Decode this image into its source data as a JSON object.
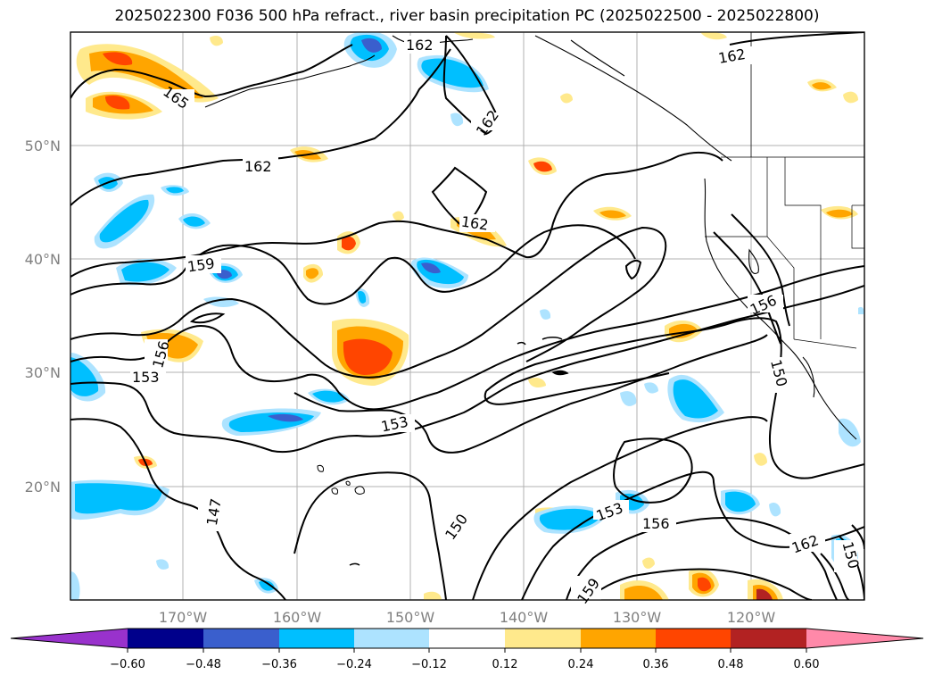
{
  "title": "2025022300 F036 500 hPa refract., river basin precipitation PC (2025022500 - 2025022800)",
  "lat_labels": [
    "50°N",
    "40°N",
    "30°N",
    "20°N"
  ],
  "lon_labels": [
    "170°W",
    "160°W",
    "150°W",
    "140°W",
    "130°W",
    "120°W"
  ],
  "contour_labels": [
    "162",
    "162",
    "162",
    "165",
    "162",
    "162",
    "159",
    "156",
    "156",
    "153",
    "153",
    "150",
    "147",
    "150",
    "153",
    "156",
    "162",
    "159",
    "150"
  ],
  "colorbar": {
    "ticks": [
      "−0.60",
      "−0.48",
      "−0.36",
      "−0.24",
      "−0.12",
      "0.12",
      "0.24",
      "0.36",
      "0.48",
      "0.60"
    ],
    "colors": [
      "#9932CC",
      "#00008B",
      "#3A5FCD",
      "#00BFFF",
      "#ADE3FF",
      "#FFFFFF",
      "#FFE98C",
      "#FFA500",
      "#FF4500",
      "#B22222",
      "#FF89A9"
    ]
  }
}
